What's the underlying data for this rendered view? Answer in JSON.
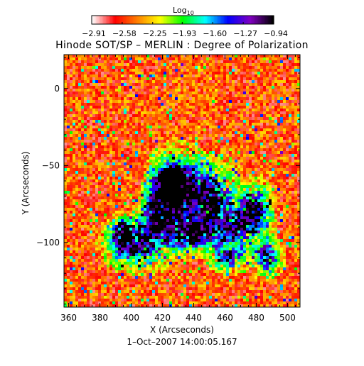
{
  "chart_data": {
    "type": "heatmap",
    "title": "Hinode SOT/SP – MERLIN : Degree of Polarization",
    "colorbar": {
      "label_main": "Log",
      "label_sub": "10",
      "ticks": [
        -2.91,
        -2.58,
        -2.25,
        -1.93,
        -1.6,
        -1.27,
        -0.94
      ],
      "tick_labels": [
        "−2.91",
        "−2.58",
        "−2.25",
        "−1.93",
        "−1.60",
        "−1.27",
        "−0.94"
      ],
      "range": [
        -2.91,
        -0.94
      ]
    },
    "colormap": [
      "#ffffff",
      "#ff0000",
      "#ff8000",
      "#ffff00",
      "#00ff00",
      "#00ffff",
      "#0000ff",
      "#8000c0",
      "#000000"
    ],
    "xlabel": "X (Arcseconds)",
    "ylabel": "Y (Arcseconds)",
    "xlim": [
      357,
      508
    ],
    "ylim": [
      -142,
      22
    ],
    "xticks": [
      360,
      380,
      400,
      420,
      440,
      460,
      480,
      500
    ],
    "yticks": [
      0,
      -50,
      -100
    ],
    "xtick_labels": [
      "360",
      "380",
      "400",
      "420",
      "440",
      "460",
      "480",
      "500"
    ],
    "ytick_labels": [
      "0",
      "−50",
      "−100"
    ],
    "footer": "1–Oct–2007 14:00:05.167",
    "grid": false
  }
}
